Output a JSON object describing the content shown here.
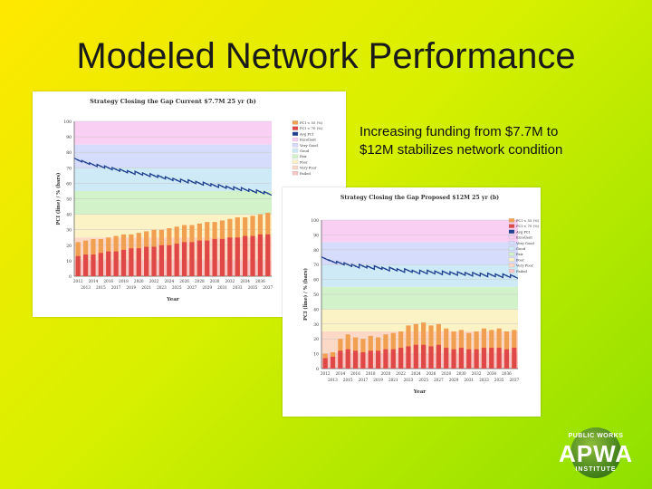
{
  "slide": {
    "title": "Modeled Network Performance",
    "caption": "Increasing funding from $7.7M to $12M stabilizes network condition"
  },
  "logo": {
    "top": "PUBLIC WORKS",
    "main": "APWA",
    "bottom": "INSTITUTE"
  },
  "colors": {
    "excellent": "#f9d0f4",
    "very_good": "#d6dcfb",
    "good": "#cdeaf6",
    "fair": "#d2f3c9",
    "poor": "#fbf3c6",
    "very_poor": "#fbd9c6",
    "failed": "#f8c5c5",
    "bar_upper": "#f0a050",
    "bar_lower": "#e04848",
    "line": "#1f3f8f"
  },
  "chart_data": [
    {
      "type": "bar",
      "title": "Strategy Closing the Gap Current $7.7M 25 yr (b)",
      "xlabel": "Year",
      "ylabel": "PCI (line) / % (bars)",
      "ylim": [
        0,
        100
      ],
      "yticks": [
        0,
        10,
        20,
        30,
        40,
        50,
        60,
        70,
        80,
        90,
        100
      ],
      "legend": [
        "PCI < 55 (%)",
        "PCI < 70 (%)",
        "Avg PCI",
        "Excellent",
        "Very Good",
        "Good",
        "Fair",
        "Poor",
        "Very Poor",
        "Failed"
      ],
      "legend_position": "top-right",
      "x_labels_top": [
        "2012",
        "2014",
        "2016",
        "2018",
        "2020",
        "2022",
        "2024",
        "2026",
        "2028",
        "2030",
        "2032",
        "2034",
        "2036"
      ],
      "x_labels_bottom": [
        "2013",
        "2015",
        "2017",
        "2019",
        "2021",
        "2023",
        "2025",
        "2027",
        "2029",
        "2031",
        "2033",
        "2035",
        "2037"
      ],
      "bands": [
        [
          85,
          100
        ],
        [
          70,
          85
        ],
        [
          55,
          70
        ],
        [
          40,
          55
        ],
        [
          25,
          40
        ],
        [
          10,
          25
        ],
        [
          0,
          10
        ]
      ],
      "x": [
        2012,
        2013,
        2014,
        2015,
        2016,
        2017,
        2018,
        2019,
        2020,
        2021,
        2022,
        2023,
        2024,
        2025,
        2026,
        2027,
        2028,
        2029,
        2030,
        2031,
        2032,
        2033,
        2034,
        2035,
        2036,
        2037
      ],
      "series": [
        {
          "name": "PCI < 55 (%)",
          "values": [
            22,
            23,
            24,
            24,
            25,
            26,
            27,
            27,
            28,
            29,
            30,
            30,
            31,
            32,
            33,
            33,
            34,
            35,
            35,
            36,
            37,
            38,
            38,
            39,
            40,
            41
          ]
        },
        {
          "name": "PCI < 70 (%)",
          "values": [
            13,
            14,
            14,
            15,
            16,
            16,
            17,
            18,
            18,
            19,
            19,
            20,
            20,
            21,
            22,
            22,
            23,
            23,
            24,
            24,
            25,
            25,
            26,
            26,
            27,
            27
          ]
        },
        {
          "name": "Avg PCI",
          "values": [
            75,
            73.5,
            72,
            71,
            70,
            69,
            68,
            67,
            66.5,
            65.5,
            65,
            64,
            63,
            62,
            61.5,
            61,
            60,
            59.5,
            58.5,
            58,
            57,
            56.5,
            56,
            55,
            54.5,
            53.5
          ]
        }
      ]
    },
    {
      "type": "bar",
      "title": "Strategy Closing the Gap Proposed $12M 25 yr (b)",
      "xlabel": "Year",
      "ylabel": "PCI (line) / % (bars)",
      "ylim": [
        0,
        100
      ],
      "yticks": [
        0,
        10,
        20,
        30,
        40,
        50,
        60,
        70,
        80,
        90,
        100
      ],
      "legend": [
        "PCI < 55 (%)",
        "PCI < 70 (%)",
        "Avg PCI",
        "Excellent",
        "Very Good",
        "Good",
        "Fair",
        "Poor",
        "Very Poor",
        "Failed"
      ],
      "legend_position": "top-right",
      "x_labels_top": [
        "2012",
        "2014",
        "2016",
        "2018",
        "2020",
        "2022",
        "2024",
        "2026",
        "2028",
        "2030",
        "2032",
        "2034",
        "2036"
      ],
      "x_labels_bottom": [
        "2013",
        "2015",
        "2017",
        "2019",
        "2021",
        "2023",
        "2025",
        "2027",
        "2029",
        "2031",
        "2033",
        "2035",
        "2037"
      ],
      "bands": [
        [
          85,
          100
        ],
        [
          70,
          85
        ],
        [
          55,
          70
        ],
        [
          40,
          55
        ],
        [
          25,
          40
        ],
        [
          10,
          25
        ],
        [
          0,
          10
        ]
      ],
      "x": [
        2012,
        2013,
        2014,
        2015,
        2016,
        2017,
        2018,
        2019,
        2020,
        2021,
        2022,
        2023,
        2024,
        2025,
        2026,
        2027,
        2028,
        2029,
        2030,
        2031,
        2032,
        2033,
        2034,
        2035,
        2036,
        2037
      ],
      "series": [
        {
          "name": "PCI < 55 (%)",
          "values": [
            10,
            11,
            20,
            23,
            21,
            20,
            22,
            21,
            23,
            24,
            25,
            29,
            30,
            31,
            29,
            30,
            27,
            25,
            26,
            24,
            25,
            27,
            26,
            27,
            25,
            26
          ]
        },
        {
          "name": "PCI < 70 (%)",
          "values": [
            7,
            8,
            12,
            13,
            12,
            11,
            12,
            12,
            13,
            13,
            14,
            15,
            16,
            16,
            15,
            16,
            14,
            13,
            14,
            13,
            13,
            14,
            14,
            14,
            13,
            14
          ]
        },
        {
          "name": "Avg PCI",
          "values": [
            74,
            72,
            71,
            70,
            69,
            69,
            68,
            68,
            67,
            67,
            66,
            66,
            65,
            65,
            65,
            64.5,
            64.5,
            64,
            64,
            63.5,
            63.5,
            63,
            63,
            62.5,
            62.5,
            62
          ]
        }
      ]
    }
  ]
}
